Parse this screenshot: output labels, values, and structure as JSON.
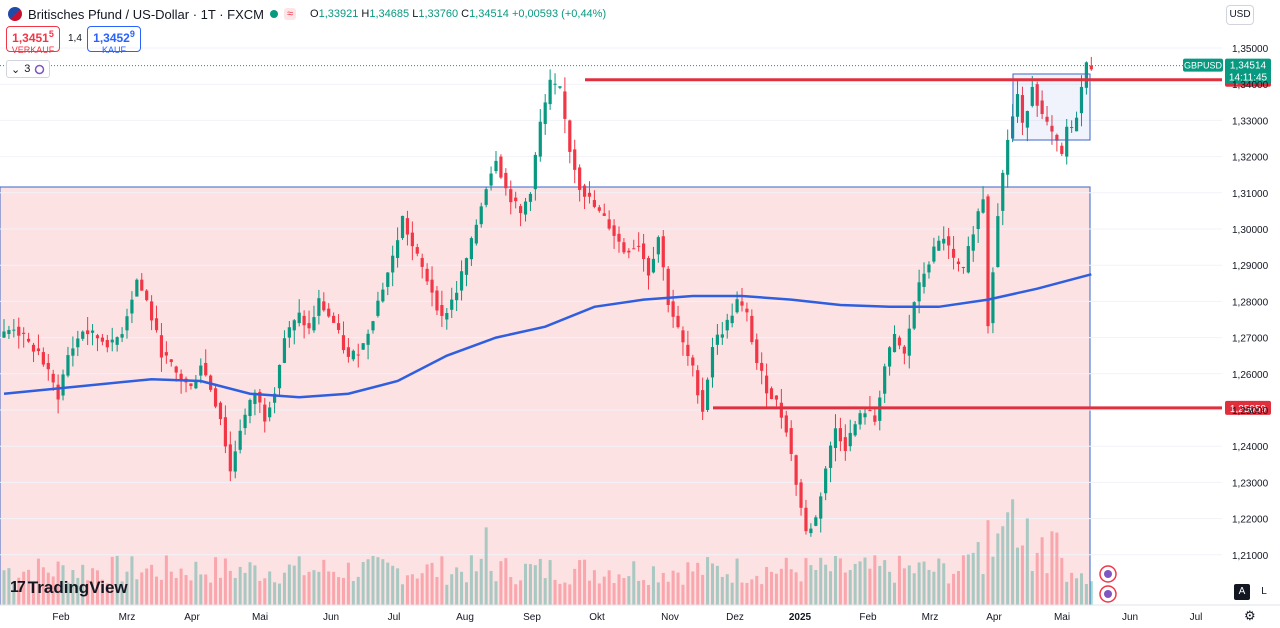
{
  "header": {
    "title": "Britisches Pfund / US-Dollar · 1T · FXCM",
    "wave_icon": "≈",
    "ohlc": {
      "o_label": "O",
      "o": "1,33921",
      "h_label": "H",
      "h": "1,34685",
      "l_label": "L",
      "l": "1,33760",
      "c_label": "C",
      "c": "1,34514",
      "change": "+0,00593 (+0,44%)"
    }
  },
  "trade": {
    "sell_price": "1,3451",
    "sell_sup": "5",
    "sell_label": "VERKAUF",
    "spread": "1,4",
    "buy_price": "1,3452",
    "buy_sup": "9",
    "buy_label": "KAUF"
  },
  "indicator": {
    "count": "3",
    "chevron": "⌄"
  },
  "currency": "USD",
  "logo": "TradingView",
  "controls": {
    "auto": "A",
    "log": "L"
  },
  "colors": {
    "up": "#089981",
    "down": "#f23645",
    "ma": "#2f5fde",
    "zone": "#fde2e4",
    "level": "#e0303e"
  },
  "chart_data": {
    "type": "candlestick",
    "symbol": "GBPUSD",
    "y_ticks": [
      "1,35000",
      "1,34000",
      "1,33000",
      "1,32000",
      "1,31000",
      "1,30000",
      "1,29000",
      "1,28000",
      "1,27000",
      "1,26000",
      "1,25000",
      "1,24000",
      "1,23000",
      "1,22000",
      "1,21000"
    ],
    "ylim": [
      1.2035,
      1.3505
    ],
    "x_ticks": [
      "Feb",
      "Mrz",
      "Apr",
      "Mai",
      "Jun",
      "Jul",
      "Aug",
      "Sep",
      "Okt",
      "Nov",
      "Dez",
      "2025",
      "Feb",
      "Mrz",
      "Apr",
      "Mai",
      "Jun",
      "Jul"
    ],
    "last_price_label": "GBPUSD",
    "last_price": "1,34514",
    "countdown": "14:11:45",
    "levels": [
      {
        "value": 1.34123,
        "label": "1,34123"
      },
      {
        "value": 1.25059,
        "label": "1,25059"
      }
    ],
    "price_path": [
      [
        0,
        1.27
      ],
      [
        3,
        1.273
      ],
      [
        6,
        1.268
      ],
      [
        8,
        1.266
      ],
      [
        10,
        1.26
      ],
      [
        12,
        1.254
      ],
      [
        14,
        1.265
      ],
      [
        17,
        1.272
      ],
      [
        20,
        1.27
      ],
      [
        23,
        1.268
      ],
      [
        25,
        1.272
      ],
      [
        28,
        1.286
      ],
      [
        30,
        1.28
      ],
      [
        33,
        1.266
      ],
      [
        36,
        1.26
      ],
      [
        39,
        1.256
      ],
      [
        41,
        1.263
      ],
      [
        43,
        1.256
      ],
      [
        45,
        1.248
      ],
      [
        47,
        1.233
      ],
      [
        49,
        1.245
      ],
      [
        52,
        1.255
      ],
      [
        54,
        1.248
      ],
      [
        56,
        1.256
      ],
      [
        58,
        1.27
      ],
      [
        61,
        1.276
      ],
      [
        63,
        1.272
      ],
      [
        65,
        1.28
      ],
      [
        68,
        1.274
      ],
      [
        71,
        1.264
      ],
      [
        74,
        1.268
      ],
      [
        77,
        1.28
      ],
      [
        80,
        1.292
      ],
      [
        82,
        1.303
      ],
      [
        84,
        1.295
      ],
      [
        86,
        1.289
      ],
      [
        88,
        1.283
      ],
      [
        90,
        1.275
      ],
      [
        93,
        1.283
      ],
      [
        96,
        1.296
      ],
      [
        99,
        1.312
      ],
      [
        101,
        1.32
      ],
      [
        103,
        1.311
      ],
      [
        106,
        1.304
      ],
      [
        108,
        1.311
      ],
      [
        110,
        1.329
      ],
      [
        112,
        1.34
      ],
      [
        114,
        1.338
      ],
      [
        116,
        1.322
      ],
      [
        118,
        1.312
      ],
      [
        121,
        1.306
      ],
      [
        124,
        1.301
      ],
      [
        127,
        1.294
      ],
      [
        130,
        1.296
      ],
      [
        132,
        1.288
      ],
      [
        134,
        1.298
      ],
      [
        136,
        1.28
      ],
      [
        139,
        1.268
      ],
      [
        141,
        1.261
      ],
      [
        143,
        1.25
      ],
      [
        145,
        1.268
      ],
      [
        148,
        1.274
      ],
      [
        150,
        1.28
      ],
      [
        152,
        1.276
      ],
      [
        154,
        1.263
      ],
      [
        156,
        1.256
      ],
      [
        158,
        1.252
      ],
      [
        160,
        1.245
      ],
      [
        162,
        1.23
      ],
      [
        164,
        1.216
      ],
      [
        166,
        1.22
      ],
      [
        168,
        1.234
      ],
      [
        170,
        1.245
      ],
      [
        172,
        1.24
      ],
      [
        174,
        1.246
      ],
      [
        176,
        1.25
      ],
      [
        178,
        1.247
      ],
      [
        180,
        1.262
      ],
      [
        182,
        1.27
      ],
      [
        184,
        1.265
      ],
      [
        186,
        1.28
      ],
      [
        188,
        1.288
      ],
      [
        190,
        1.294
      ],
      [
        192,
        1.298
      ],
      [
        194,
        1.291
      ],
      [
        196,
        1.288
      ],
      [
        198,
        1.3
      ],
      [
        200,
        1.309
      ],
      [
        201,
        1.274
      ],
      [
        203,
        1.305
      ],
      [
        205,
        1.325
      ],
      [
        207,
        1.337
      ],
      [
        208,
        1.328
      ],
      [
        210,
        1.34
      ],
      [
        212,
        1.331
      ],
      [
        214,
        1.326
      ],
      [
        216,
        1.32
      ],
      [
        217,
        1.328
      ],
      [
        218,
        1.327
      ],
      [
        219,
        1.332
      ],
      [
        220,
        1.339
      ],
      [
        221,
        1.34514
      ]
    ],
    "ma_path": [
      [
        0,
        1.2545
      ],
      [
        15,
        1.2565
      ],
      [
        30,
        1.2585
      ],
      [
        40,
        1.258
      ],
      [
        50,
        1.2545
      ],
      [
        60,
        1.2535
      ],
      [
        70,
        1.2545
      ],
      [
        80,
        1.258
      ],
      [
        90,
        1.265
      ],
      [
        100,
        1.27
      ],
      [
        110,
        1.273
      ],
      [
        120,
        1.2785
      ],
      [
        130,
        1.2805
      ],
      [
        140,
        1.2815
      ],
      [
        150,
        1.2815
      ],
      [
        160,
        1.2805
      ],
      [
        170,
        1.279
      ],
      [
        180,
        1.2785
      ],
      [
        190,
        1.2785
      ],
      [
        200,
        1.2805
      ],
      [
        210,
        1.2835
      ],
      [
        221,
        1.2875
      ]
    ]
  }
}
